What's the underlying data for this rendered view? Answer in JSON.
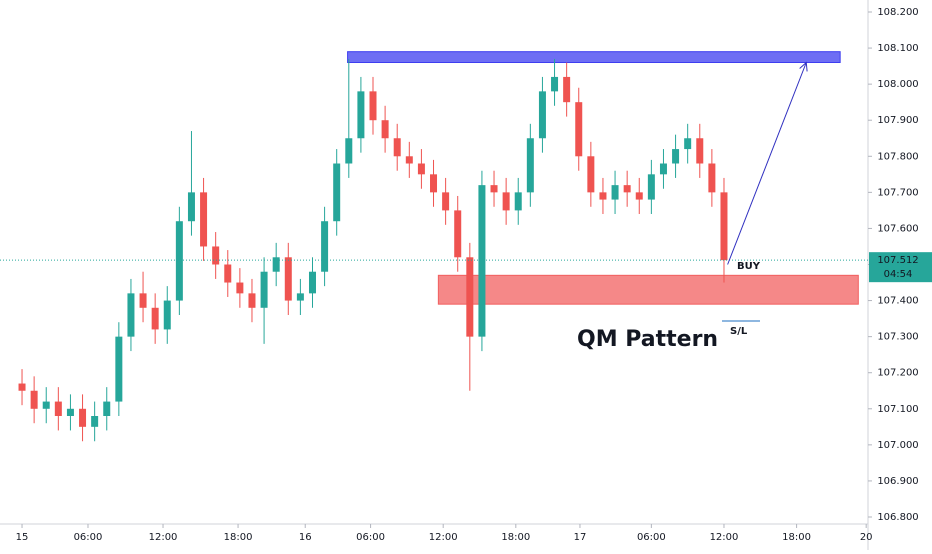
{
  "chart_data": {
    "type": "candlestick",
    "title": "QM Pattern",
    "x": [
      0,
      1,
      2,
      3,
      4,
      5,
      6,
      7,
      8,
      9,
      10,
      11,
      12,
      13,
      14,
      15,
      16,
      17,
      18,
      19,
      20,
      21,
      22,
      23,
      24,
      25,
      26,
      27,
      28,
      29,
      30,
      31,
      32,
      33,
      34,
      35,
      36,
      37,
      38,
      39,
      40,
      41,
      42,
      43,
      44,
      45,
      46,
      47,
      48,
      49,
      50,
      51,
      52,
      53,
      54,
      55,
      56,
      57,
      58
    ],
    "open": [
      107.17,
      107.15,
      107.1,
      107.12,
      107.08,
      107.1,
      107.05,
      107.08,
      107.12,
      107.3,
      107.42,
      107.38,
      107.32,
      107.4,
      107.62,
      107.7,
      107.55,
      107.5,
      107.45,
      107.42,
      107.38,
      107.48,
      107.52,
      107.4,
      107.42,
      107.48,
      107.62,
      107.78,
      107.85,
      107.98,
      107.9,
      107.85,
      107.8,
      107.78,
      107.75,
      107.7,
      107.65,
      107.52,
      107.3,
      107.72,
      107.7,
      107.65,
      107.7,
      107.85,
      107.98,
      108.02,
      107.95,
      107.8,
      107.7,
      107.68,
      107.72,
      107.7,
      107.68,
      107.75,
      107.78,
      107.82,
      107.85,
      107.78,
      107.7
    ],
    "high": [
      107.21,
      107.19,
      107.16,
      107.16,
      107.14,
      107.14,
      107.12,
      107.16,
      107.34,
      107.46,
      107.48,
      107.42,
      107.44,
      107.66,
      107.87,
      107.74,
      107.59,
      107.54,
      107.49,
      107.46,
      107.52,
      107.56,
      107.56,
      107.46,
      107.52,
      107.66,
      107.82,
      108.07,
      108.02,
      108.02,
      107.94,
      107.89,
      107.84,
      107.82,
      107.79,
      107.74,
      107.69,
      107.56,
      107.76,
      107.76,
      107.74,
      107.74,
      107.89,
      108.02,
      108.07,
      108.06,
      107.99,
      107.84,
      107.74,
      107.76,
      107.76,
      107.74,
      107.79,
      107.82,
      107.86,
      107.89,
      107.89,
      107.82,
      107.74
    ],
    "low": [
      107.11,
      107.06,
      107.06,
      107.04,
      107.04,
      107.01,
      107.01,
      107.04,
      107.08,
      107.26,
      107.34,
      107.28,
      107.28,
      107.36,
      107.58,
      107.51,
      107.46,
      107.41,
      107.38,
      107.34,
      107.28,
      107.44,
      107.36,
      107.36,
      107.38,
      107.44,
      107.58,
      107.74,
      107.81,
      107.86,
      107.81,
      107.76,
      107.74,
      107.71,
      107.66,
      107.61,
      107.48,
      107.15,
      107.26,
      107.66,
      107.61,
      107.61,
      107.66,
      107.81,
      107.94,
      107.91,
      107.76,
      107.66,
      107.64,
      107.64,
      107.66,
      107.64,
      107.64,
      107.71,
      107.74,
      107.78,
      107.74,
      107.66,
      107.45
    ],
    "up_color": "#26a69a",
    "down_color": "#ef5350",
    "xlim": [
      -1.82,
      69.9
    ],
    "ylim": [
      106.8,
      108.2
    ],
    "xticks": [
      {
        "value": 0,
        "label": "15"
      },
      {
        "value": 5.45,
        "label": "06:00"
      },
      {
        "value": 11.65,
        "label": "12:00"
      },
      {
        "value": 17.85,
        "label": "18:00"
      },
      {
        "value": 23.4,
        "label": "16"
      },
      {
        "value": 28.8,
        "label": "06:00"
      },
      {
        "value": 34.8,
        "label": "12:00"
      },
      {
        "value": 40.8,
        "label": "18:00"
      },
      {
        "value": 46.1,
        "label": "17"
      },
      {
        "value": 52.0,
        "label": "06:00"
      },
      {
        "value": 58.0,
        "label": "12:00"
      },
      {
        "value": 64.0,
        "label": "18:00"
      },
      {
        "value": 69.75,
        "label": "20"
      }
    ],
    "yticks": [
      {
        "value": 106.8,
        "label": "106.800"
      },
      {
        "value": 106.9,
        "label": "106.900"
      },
      {
        "value": 107.0,
        "label": "107.000"
      },
      {
        "value": 107.1,
        "label": "107.100"
      },
      {
        "value": 107.2,
        "label": "107.200"
      },
      {
        "value": 107.3,
        "label": "107.300"
      },
      {
        "value": 107.4,
        "label": "107.400"
      },
      {
        "value": 107.5,
        "label": "107.500"
      },
      {
        "value": 107.6,
        "label": "107.600"
      },
      {
        "value": 107.7,
        "label": "107.700"
      },
      {
        "value": 107.8,
        "label": "107.800"
      },
      {
        "value": 107.9,
        "label": "107.900"
      },
      {
        "value": 108.0,
        "label": "108.000"
      },
      {
        "value": 108.1,
        "label": "108.100"
      },
      {
        "value": 108.2,
        "label": "108.200"
      }
    ],
    "last_price": {
      "value": 107.512,
      "label": "107.512"
    },
    "countdown": "04:54",
    "zones": [
      {
        "x": [
          26.9,
          67.6
        ],
        "y": [
          108.06,
          108.09
        ],
        "color": "#3d3df0"
      },
      {
        "x": [
          34.4,
          69.1
        ],
        "y": [
          107.39,
          107.47
        ],
        "color": "#f26060"
      }
    ],
    "arrow": {
      "x": [
        58.3,
        64.8
      ],
      "y": [
        107.5,
        108.06
      ],
      "color": "#3030c0"
    },
    "buy_label": "BUY",
    "sl_label": "S/L"
  }
}
